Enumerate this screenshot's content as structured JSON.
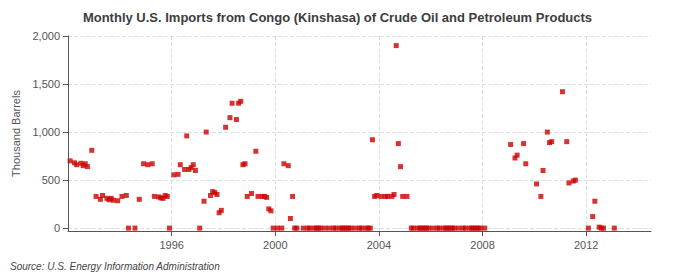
{
  "chart_data": {
    "type": "scatter",
    "title": "Monthly U.S. Imports from Congo (Kinshasa) of Crude Oil and Petroleum Products",
    "ylabel": "Thousand Barrels",
    "annotations": [
      "Source: U.S. Energy Information Administration"
    ],
    "color": "#CC0000",
    "marker": "square",
    "grid": true,
    "xlim": [
      1992.0,
      2014.5
    ],
    "xticks": [
      1996,
      2000,
      2004,
      2008,
      2012
    ],
    "ylim": [
      -30,
      2000
    ],
    "yticks": [
      0,
      500,
      {
        "value": 1000,
        "label": "1,000"
      },
      {
        "value": 1500,
        "label": "1,500"
      },
      {
        "value": 2000,
        "label": "2,000"
      }
    ],
    "x": [
      1992.083,
      1992.25,
      1992.333,
      1992.5,
      1992.583,
      1992.667,
      1992.75,
      1992.917,
      1993.083,
      1993.25,
      1993.333,
      1993.5,
      1993.583,
      1993.667,
      1993.75,
      1993.917,
      1994.083,
      1994.25,
      1994.333,
      1994.583,
      1994.75,
      1994.917,
      1995.083,
      1995.25,
      1995.333,
      1995.5,
      1995.583,
      1995.667,
      1995.75,
      1995.833,
      1995.917,
      1996.083,
      1996.25,
      1996.333,
      1996.5,
      1996.583,
      1996.667,
      1996.75,
      1996.833,
      1996.917,
      1997.083,
      1997.25,
      1997.333,
      1997.5,
      1997.583,
      1997.667,
      1997.75,
      1997.833,
      1997.917,
      1998.083,
      1998.25,
      1998.333,
      1998.5,
      1998.583,
      1998.667,
      1998.75,
      1998.833,
      1998.917,
      1999.083,
      1999.25,
      1999.333,
      1999.5,
      1999.583,
      1999.667,
      1999.75,
      1999.833,
      1999.917,
      2000.083,
      2000.25,
      2000.333,
      2000.5,
      2000.583,
      2000.667,
      2000.75,
      2000.833,
      2001.083,
      2001.25,
      2001.333,
      2001.5,
      2001.583,
      2001.667,
      2001.75,
      2001.917,
      2002.083,
      2002.25,
      2002.333,
      2002.5,
      2002.583,
      2002.667,
      2002.75,
      2002.833,
      2002.917,
      2003.083,
      2003.25,
      2003.333,
      2003.5,
      2003.583,
      2003.667,
      2003.75,
      2003.833,
      2003.917,
      2004.083,
      2004.25,
      2004.333,
      2004.5,
      2004.583,
      2004.667,
      2004.75,
      2004.833,
      2004.917,
      2005.083,
      2005.25,
      2005.333,
      2005.5,
      2005.583,
      2005.667,
      2005.75,
      2005.833,
      2005.917,
      2006.083,
      2006.25,
      2006.333,
      2006.5,
      2006.583,
      2006.667,
      2006.75,
      2006.833,
      2006.917,
      2007.083,
      2007.25,
      2007.333,
      2007.5,
      2007.583,
      2007.667,
      2007.75,
      2007.833,
      2007.917,
      2008.083,
      2009.083,
      2009.25,
      2009.333,
      2009.583,
      2009.667,
      2010.083,
      2010.25,
      2010.333,
      2010.5,
      2010.583,
      2010.667,
      2011.083,
      2011.25,
      2011.333,
      2011.5,
      2011.583,
      2012.083,
      2012.25,
      2012.333,
      2012.5,
      2012.583,
      2012.667,
      2013.083
    ],
    "values": [
      700,
      680,
      660,
      675,
      650,
      670,
      640,
      810,
      330,
      300,
      340,
      310,
      295,
      310,
      290,
      285,
      330,
      340,
      0,
      0,
      300,
      670,
      660,
      670,
      330,
      325,
      315,
      310,
      340,
      330,
      0,
      555,
      560,
      660,
      610,
      960,
      610,
      630,
      660,
      600,
      0,
      280,
      1000,
      340,
      380,
      370,
      350,
      160,
      185,
      1050,
      1150,
      1300,
      1130,
      1300,
      1320,
      660,
      670,
      330,
      360,
      800,
      330,
      330,
      330,
      320,
      200,
      180,
      0,
      0,
      0,
      670,
      650,
      100,
      330,
      0,
      0,
      0,
      0,
      0,
      0,
      0,
      0,
      0,
      0,
      0,
      0,
      0,
      0,
      0,
      0,
      0,
      0,
      0,
      0,
      0,
      0,
      0,
      0,
      0,
      920,
      330,
      340,
      330,
      330,
      330,
      330,
      350,
      1900,
      880,
      640,
      330,
      330,
      0,
      0,
      0,
      0,
      0,
      0,
      0,
      0,
      0,
      0,
      0,
      0,
      0,
      0,
      0,
      0,
      0,
      0,
      0,
      0,
      0,
      0,
      0,
      0,
      0,
      0,
      0,
      870,
      730,
      760,
      880,
      670,
      460,
      330,
      600,
      1000,
      890,
      900,
      1420,
      900,
      470,
      490,
      500,
      0,
      120,
      280,
      10,
      0,
      0,
      0
    ]
  }
}
